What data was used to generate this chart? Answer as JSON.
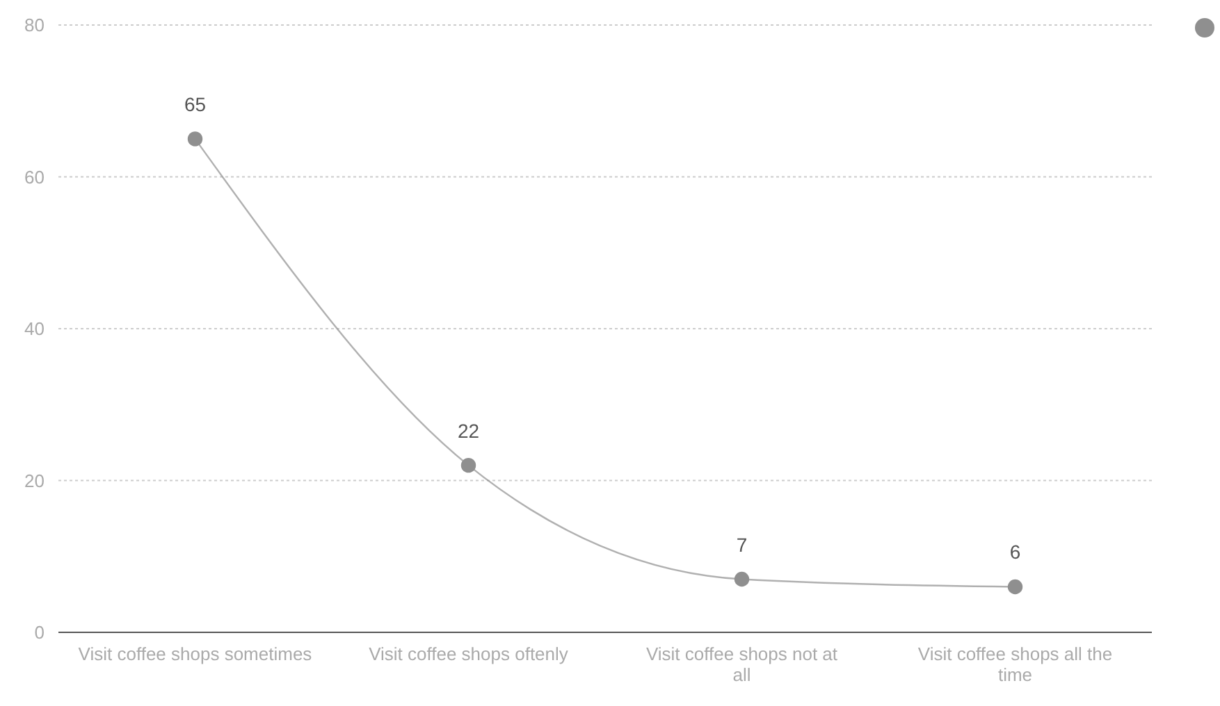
{
  "chart_data": {
    "type": "line",
    "categories": [
      "Visit coffee shops sometimes",
      "Visit coffee shops oftenly",
      "Visit coffee shops not at all",
      "Visit coffee shops all the time"
    ],
    "series": [
      {
        "color": "#8f8f8f",
        "values": [
          65,
          22,
          7,
          6
        ]
      }
    ],
    "ylim": [
      0,
      80
    ],
    "yticks": [
      0,
      20,
      40,
      60,
      80
    ],
    "grid": "y",
    "marker": "circle",
    "data_labels": true
  }
}
